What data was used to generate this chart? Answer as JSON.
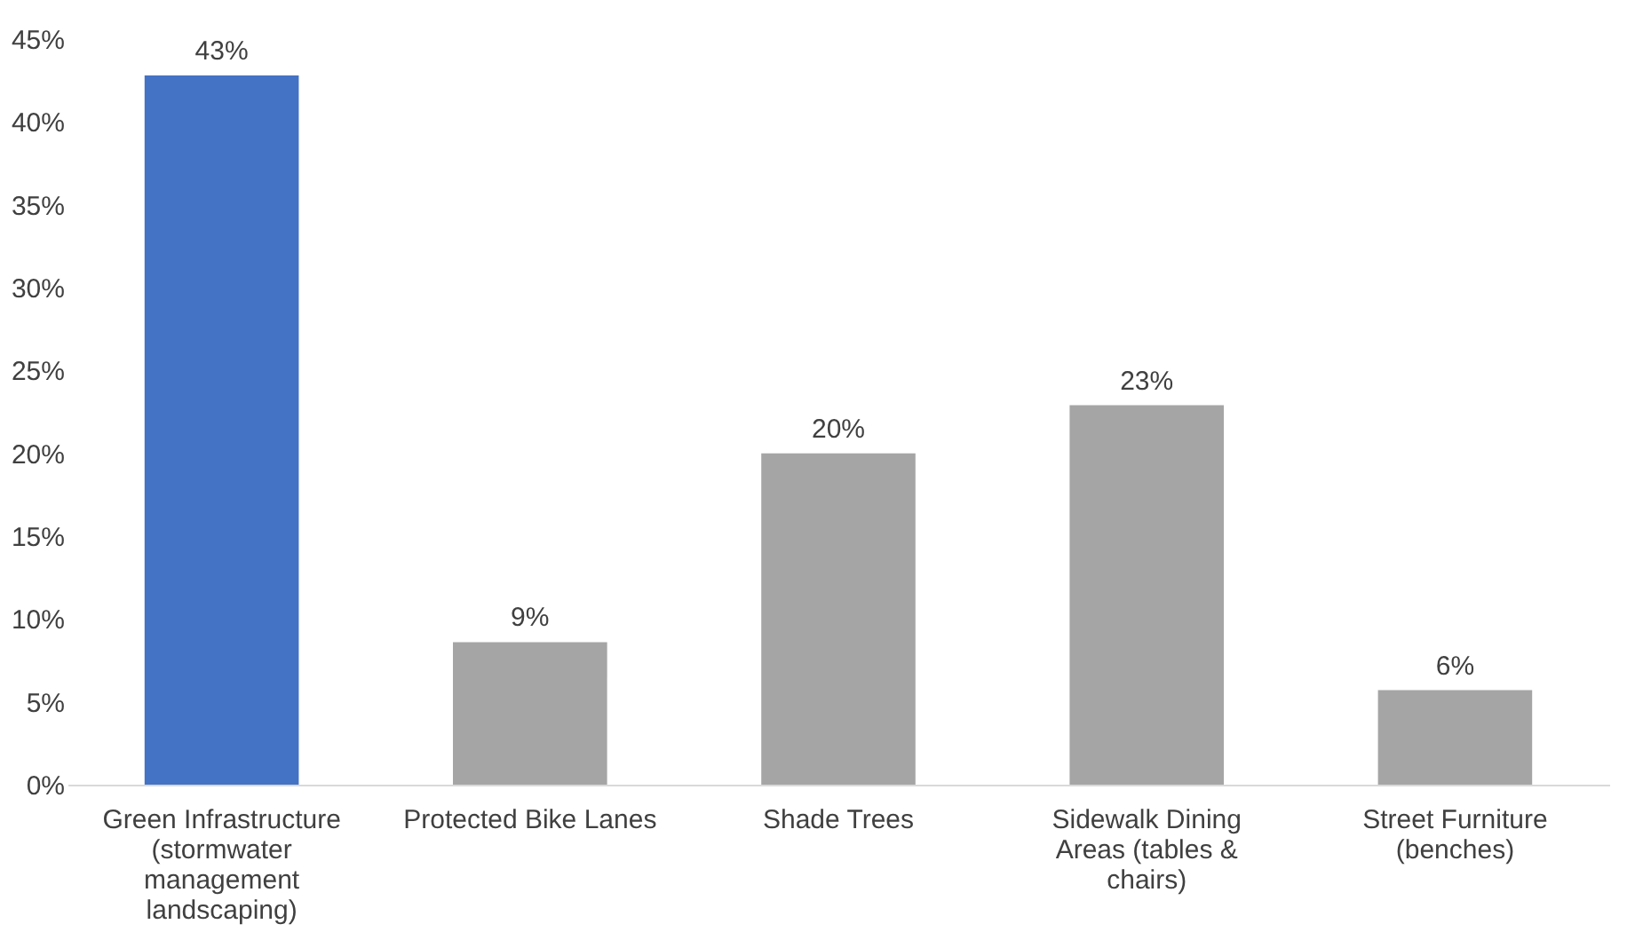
{
  "chart_data": {
    "type": "bar",
    "categories": [
      "Green Infrastructure (stormwater management landscaping)",
      "Protected Bike Lanes",
      "Shade Trees",
      "Sidewalk Dining Areas (tables & chairs)",
      "Street Furniture (benches)"
    ],
    "values": [
      42.8,
      8.6,
      20.0,
      22.9,
      5.7
    ],
    "colors": [
      "#4472c4",
      "#a5a5a5",
      "#a5a5a5",
      "#a5a5a5",
      "#a5a5a5"
    ],
    "value_labels": [
      "43%",
      "9%",
      "20%",
      "23%",
      "6%"
    ],
    "ylim": [
      0,
      45
    ],
    "yticks": [
      {
        "value": 0,
        "label": "0%"
      },
      {
        "value": 5,
        "label": "5%"
      },
      {
        "value": 10,
        "label": "10%"
      },
      {
        "value": 15,
        "label": "15%"
      },
      {
        "value": 20,
        "label": "20%"
      },
      {
        "value": 25,
        "label": "25%"
      },
      {
        "value": 30,
        "label": "30%"
      },
      {
        "value": 35,
        "label": "35%"
      },
      {
        "value": 40,
        "label": "40%"
      },
      {
        "value": 45,
        "label": "45%"
      }
    ]
  }
}
